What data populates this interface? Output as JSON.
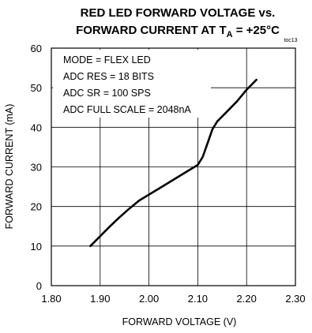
{
  "chart_data": {
    "type": "line",
    "title_line1": "RED LED FORWARD VOLTAGE vs.",
    "title_line2_prefix": "FORWARD CURRENT AT T",
    "title_line2_sub": "A",
    "title_line2_suffix": " = +25°C",
    "figure_tag": "toc13",
    "xlabel": "FORWARD VOLTAGE (V)",
    "ylabel": "FORWARD CURRENT (mA)",
    "xlim": [
      1.8,
      2.3
    ],
    "ylim": [
      0,
      60
    ],
    "xticks": [
      "1.80",
      "1.90",
      "2.00",
      "2.10",
      "2.20",
      "2.30"
    ],
    "yticks": [
      "0",
      "10",
      "20",
      "30",
      "40",
      "50",
      "60"
    ],
    "grid": true,
    "annotations": [
      "MODE = FLEX LED",
      "ADC RES = 18 BITS",
      "ADC SR = 100 SPS",
      "ADC FULL SCALE = 2048nA"
    ],
    "series": [
      {
        "x": [
          1.88,
          1.9,
          1.92,
          1.94,
          1.96,
          1.98,
          2.0,
          2.02,
          2.04,
          2.06,
          2.08,
          2.1,
          2.11,
          2.12,
          2.13,
          2.14,
          2.16,
          2.18,
          2.2,
          2.22
        ],
        "y": [
          10,
          12.5,
          15,
          17.3,
          19.5,
          21.5,
          23,
          24.5,
          26,
          27.5,
          29,
          30.5,
          32.5,
          36,
          39.5,
          41.5,
          44,
          46.5,
          49.5,
          52
        ]
      }
    ]
  }
}
